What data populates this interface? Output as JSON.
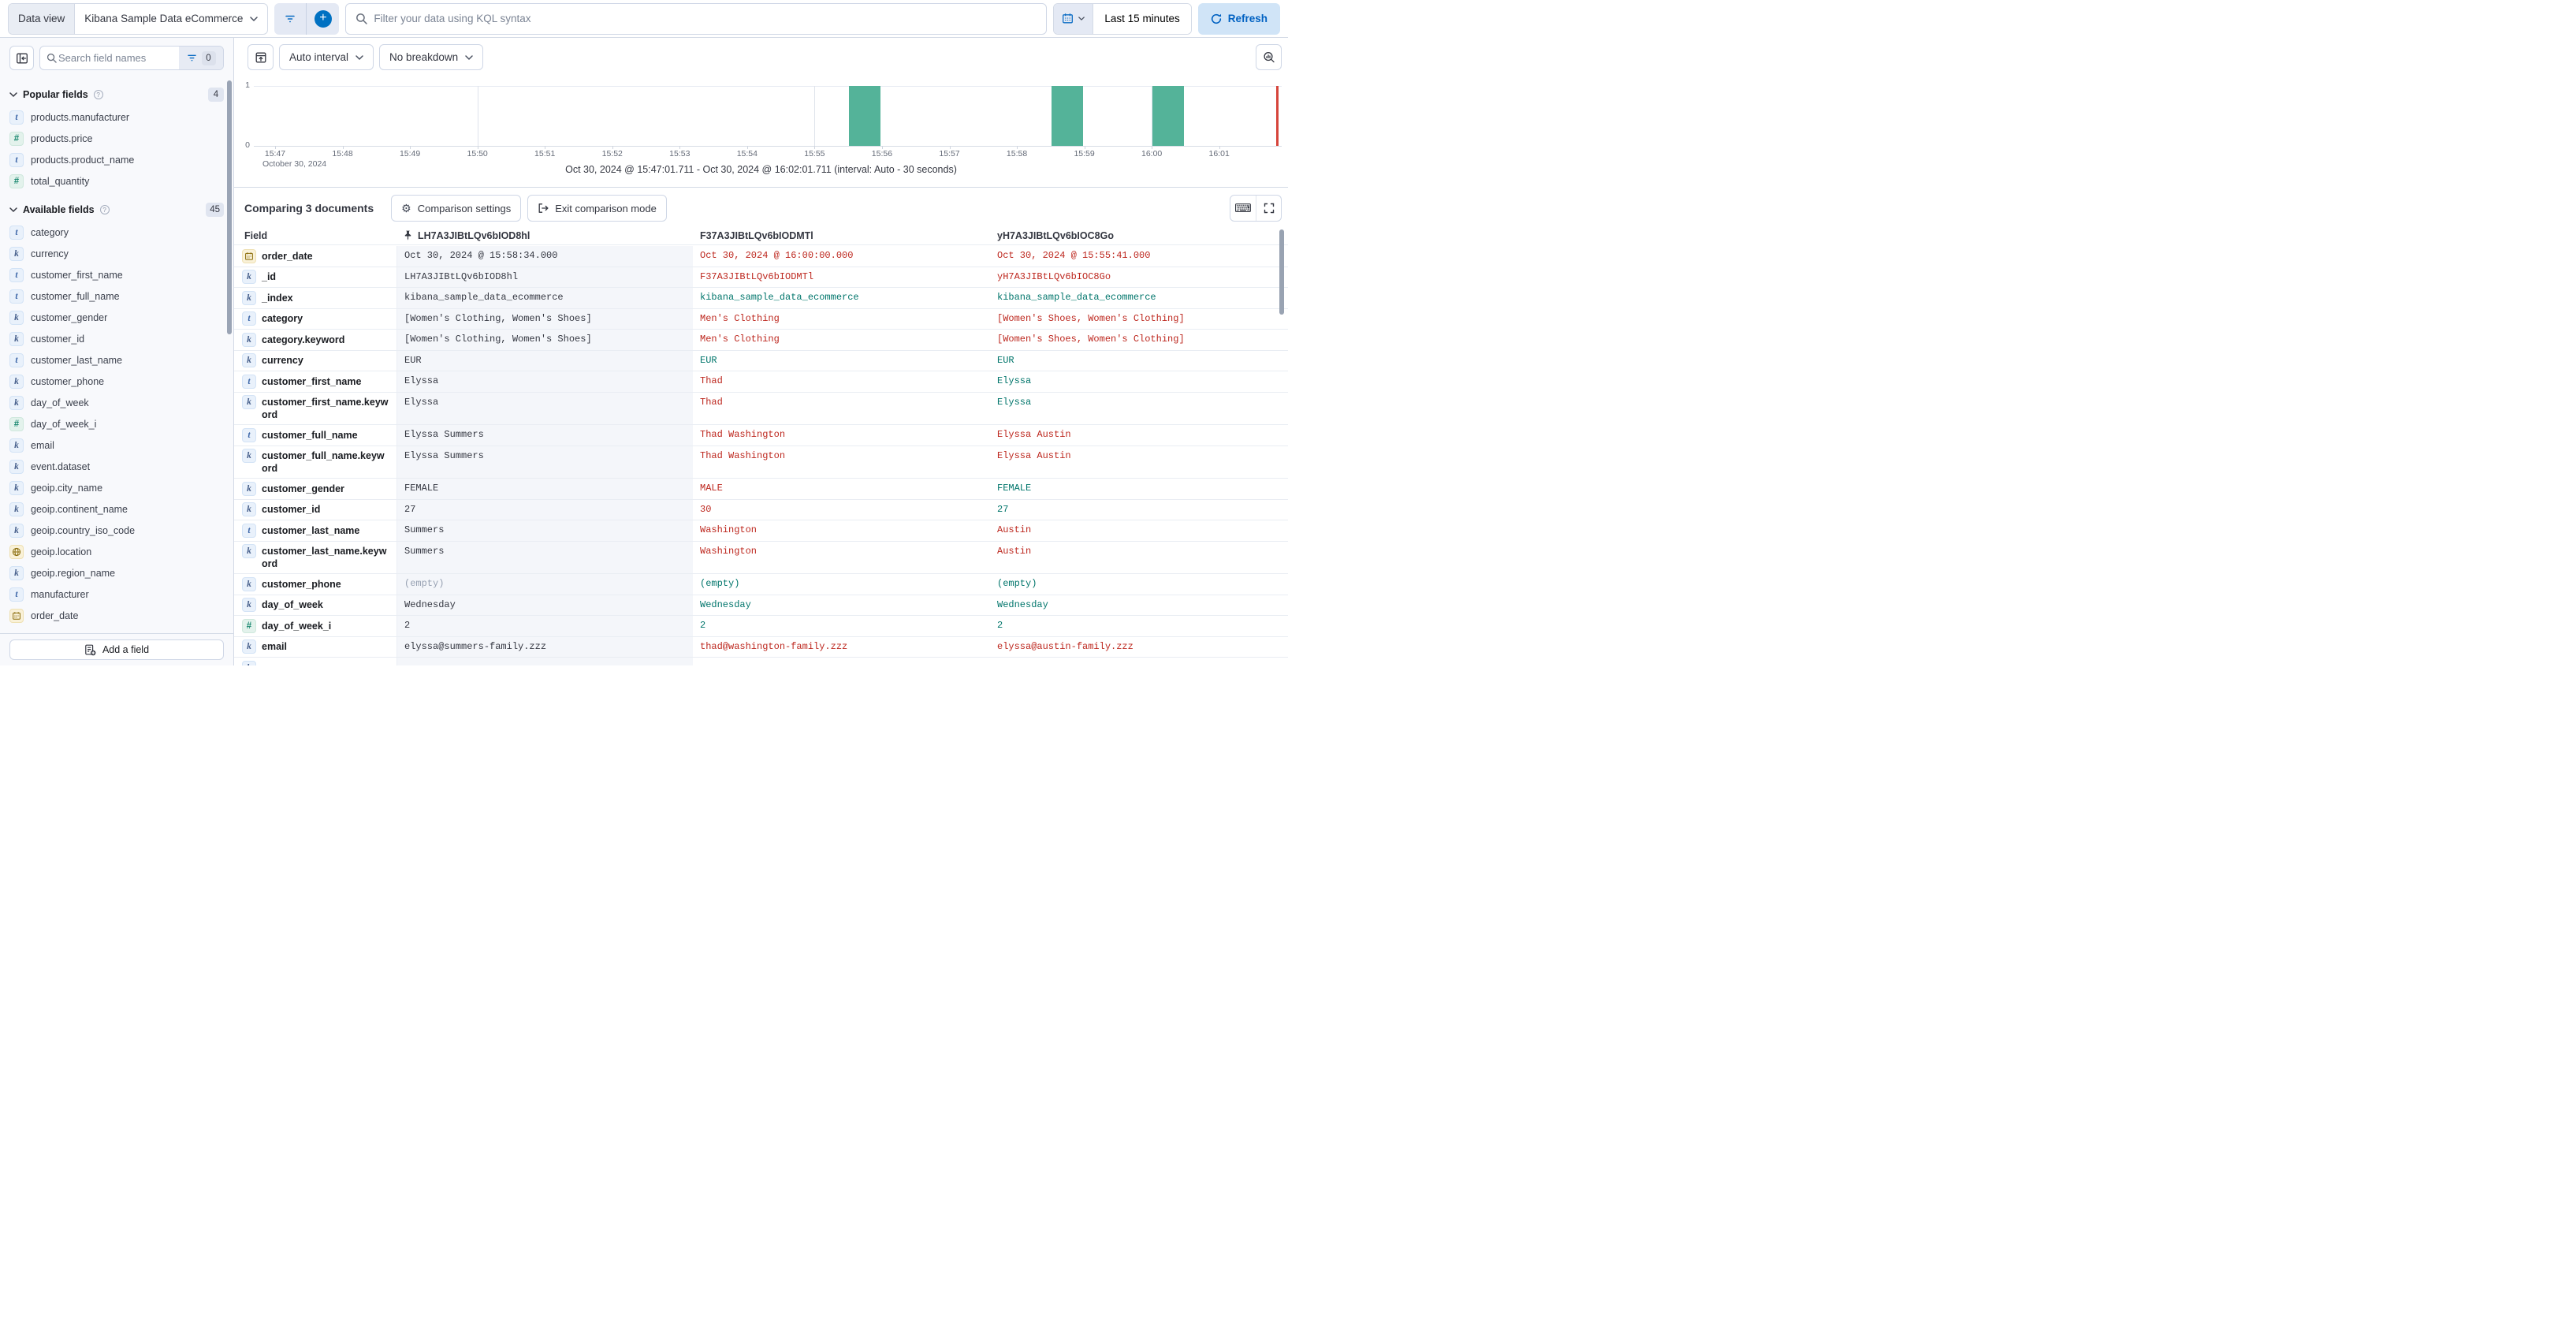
{
  "topbar": {
    "data_view_label": "Data view",
    "data_view_value": "Kibana Sample Data eCommerce",
    "kql_placeholder": "Filter your data using KQL syntax",
    "time_range": "Last 15 minutes",
    "refresh_label": "Refresh"
  },
  "sidebar": {
    "search_placeholder": "Search field names",
    "filter_count": "0",
    "sections": [
      {
        "title": "Popular fields",
        "count": "4",
        "items": [
          {
            "type": "t",
            "name": "products.manufacturer"
          },
          {
            "type": "num",
            "name": "products.price"
          },
          {
            "type": "t",
            "name": "products.product_name"
          },
          {
            "type": "num",
            "name": "total_quantity"
          }
        ]
      },
      {
        "title": "Available fields",
        "count": "45",
        "items": [
          {
            "type": "t",
            "name": "category"
          },
          {
            "type": "k",
            "name": "currency"
          },
          {
            "type": "t",
            "name": "customer_first_name"
          },
          {
            "type": "t",
            "name": "customer_full_name"
          },
          {
            "type": "k",
            "name": "customer_gender"
          },
          {
            "type": "k",
            "name": "customer_id"
          },
          {
            "type": "t",
            "name": "customer_last_name"
          },
          {
            "type": "k",
            "name": "customer_phone"
          },
          {
            "type": "k",
            "name": "day_of_week"
          },
          {
            "type": "num",
            "name": "day_of_week_i"
          },
          {
            "type": "k",
            "name": "email"
          },
          {
            "type": "k",
            "name": "event.dataset"
          },
          {
            "type": "k",
            "name": "geoip.city_name"
          },
          {
            "type": "k",
            "name": "geoip.continent_name"
          },
          {
            "type": "k",
            "name": "geoip.country_iso_code"
          },
          {
            "type": "geo",
            "name": "geoip.location"
          },
          {
            "type": "k",
            "name": "geoip.region_name"
          },
          {
            "type": "t",
            "name": "manufacturer"
          },
          {
            "type": "date",
            "name": "order_date"
          }
        ]
      }
    ],
    "add_field_label": "Add a field"
  },
  "viz": {
    "interval_label": "Auto interval",
    "breakdown_label": "No breakdown",
    "range_note": "Oct 30, 2024 @ 15:47:01.711 - Oct 30, 2024 @ 16:02:01.711 (interval: Auto - 30 seconds)"
  },
  "chart_data": {
    "type": "bar",
    "title": "",
    "xlabel": "",
    "ylabel": "",
    "ylim": [
      0,
      1
    ],
    "x_ticks": [
      "15:47",
      "15:48",
      "15:49",
      "15:50",
      "15:51",
      "15:52",
      "15:53",
      "15:54",
      "15:55",
      "15:56",
      "15:57",
      "15:58",
      "15:59",
      "16:00",
      "16:01"
    ],
    "x_date_label": "October 30, 2024",
    "gridline_ticks": [
      "15:50",
      "15:55",
      "16:00"
    ],
    "interval_seconds": 30,
    "buckets": [
      {
        "time": "15:55:30",
        "count": 1
      },
      {
        "time": "15:58:30",
        "count": 1
      },
      {
        "time": "16:00:00",
        "count": 1
      }
    ],
    "bar_color": "#54b399",
    "now_marker_color": "#d6453c",
    "legend": "off"
  },
  "comparison": {
    "title": "Comparing 3 documents",
    "settings_label": "Comparison settings",
    "exit_label": "Exit comparison mode"
  },
  "table": {
    "field_header": "Field",
    "doc_headers": [
      {
        "id": "LH7A3JIBtLQv6bIOD8hl",
        "pinned": true
      },
      {
        "id": "F37A3JIBtLQv6bIODMTl",
        "pinned": false
      },
      {
        "id": "yH7A3JIBtLQv6bIOC8Go",
        "pinned": false
      }
    ],
    "rows": [
      {
        "field": "order_date",
        "type": "date",
        "base": "Oct 30, 2024 @ 15:58:34.000",
        "comps": [
          {
            "text": "Oct 30, 2024 @ 16:00:00.000",
            "match": false
          },
          {
            "text": "Oct 30, 2024 @ 15:55:41.000",
            "match": false
          }
        ]
      },
      {
        "field": "_id",
        "type": "k",
        "base": "LH7A3JIBtLQv6bIOD8hl",
        "comps": [
          {
            "text": "F37A3JIBtLQv6bIODMTl",
            "match": false
          },
          {
            "text": "yH7A3JIBtLQv6bIOC8Go",
            "match": false
          }
        ]
      },
      {
        "field": "_index",
        "type": "k",
        "base": "kibana_sample_data_ecommerce",
        "comps": [
          {
            "text": "kibana_sample_data_ecommerce",
            "match": true
          },
          {
            "text": "kibana_sample_data_ecommerce",
            "match": true
          }
        ]
      },
      {
        "field": "category",
        "type": "t",
        "base": "[Women's Clothing, Women's Shoes]",
        "comps": [
          {
            "text": "Men's Clothing",
            "match": false
          },
          {
            "text": "[Women's Shoes, Women's Clothing]",
            "match": false
          }
        ]
      },
      {
        "field": "category.keyword",
        "type": "k",
        "base": "[Women's Clothing, Women's Shoes]",
        "comps": [
          {
            "text": "Men's Clothing",
            "match": false
          },
          {
            "text": "[Women's Shoes, Women's Clothing]",
            "match": false
          }
        ]
      },
      {
        "field": "currency",
        "type": "k",
        "base": "EUR",
        "comps": [
          {
            "text": "EUR",
            "match": true
          },
          {
            "text": "EUR",
            "match": true
          }
        ]
      },
      {
        "field": "customer_first_name",
        "type": "t",
        "base": "Elyssa",
        "comps": [
          {
            "text": "Thad",
            "match": false
          },
          {
            "text": "Elyssa",
            "match": true
          }
        ]
      },
      {
        "field": "customer_first_name.keyword",
        "type": "k",
        "base": "Elyssa",
        "comps": [
          {
            "text": "Thad",
            "match": false
          },
          {
            "text": "Elyssa",
            "match": true
          }
        ]
      },
      {
        "field": "customer_full_name",
        "type": "t",
        "base": "Elyssa Summers",
        "comps": [
          {
            "text": "Thad Washington",
            "match": false
          },
          {
            "text": "Elyssa Austin",
            "match": false
          }
        ]
      },
      {
        "field": "customer_full_name.keyword",
        "type": "k",
        "base": "Elyssa Summers",
        "comps": [
          {
            "text": "Thad Washington",
            "match": false
          },
          {
            "text": "Elyssa Austin",
            "match": false
          }
        ]
      },
      {
        "field": "customer_gender",
        "type": "k",
        "base": "FEMALE",
        "comps": [
          {
            "text": "MALE",
            "match": false
          },
          {
            "text": "FEMALE",
            "match": true
          }
        ]
      },
      {
        "field": "customer_id",
        "type": "k",
        "base": "27",
        "comps": [
          {
            "text": "30",
            "match": false
          },
          {
            "text": "27",
            "match": true
          }
        ]
      },
      {
        "field": "customer_last_name",
        "type": "t",
        "base": "Summers",
        "comps": [
          {
            "text": "Washington",
            "match": false
          },
          {
            "text": "Austin",
            "match": false
          }
        ]
      },
      {
        "field": "customer_last_name.keyword",
        "type": "k",
        "base": "Summers",
        "comps": [
          {
            "text": "Washington",
            "match": false
          },
          {
            "text": "Austin",
            "match": false
          }
        ]
      },
      {
        "field": "customer_phone",
        "type": "k",
        "base": "(empty)",
        "base_empty": true,
        "comps": [
          {
            "text": "(empty)",
            "match": true
          },
          {
            "text": "(empty)",
            "match": true
          }
        ]
      },
      {
        "field": "day_of_week",
        "type": "k",
        "base": "Wednesday",
        "comps": [
          {
            "text": "Wednesday",
            "match": true
          },
          {
            "text": "Wednesday",
            "match": true
          }
        ]
      },
      {
        "field": "day_of_week_i",
        "type": "num",
        "base": "2",
        "comps": [
          {
            "text": "2",
            "match": true
          },
          {
            "text": "2",
            "match": true
          }
        ]
      },
      {
        "field": "email",
        "type": "k",
        "base": "elyssa@summers-family.zzz",
        "comps": [
          {
            "text": "thad@washington-family.zzz",
            "match": false
          },
          {
            "text": "elyssa@austin-family.zzz",
            "match": false
          }
        ]
      }
    ],
    "partial_row": {
      "type": "k"
    }
  },
  "colors": {
    "primary_blue": "#0071c2",
    "refresh_blue": "#0061c2",
    "bar_green": "#54b399",
    "match_green": "#00756b",
    "diff_red": "#bd271e",
    "empty_gray": "#98a2b3",
    "pinned_bg": "#f4f6fa",
    "marker_red": "#d6453c"
  }
}
